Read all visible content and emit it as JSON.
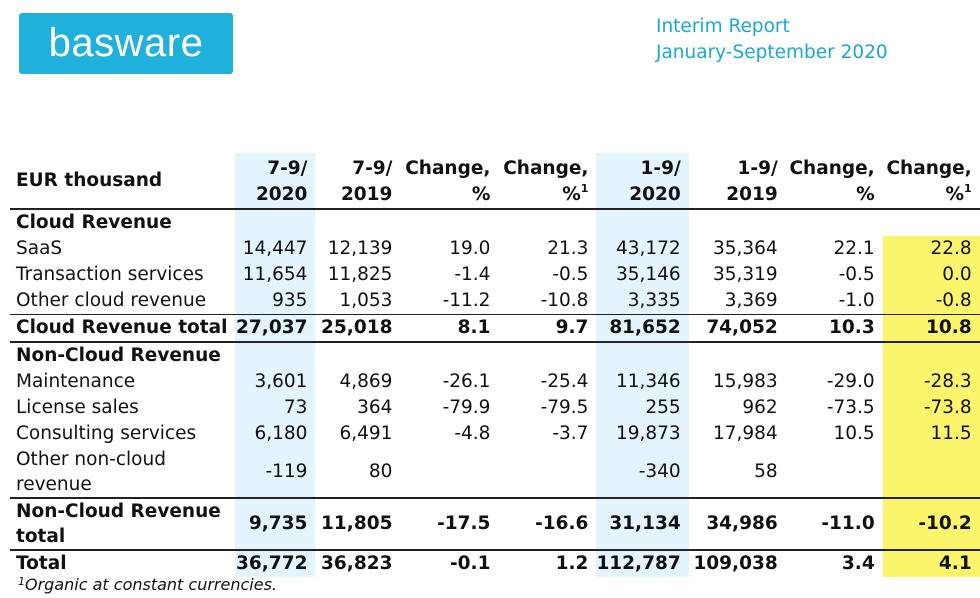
{
  "logo": {
    "text": "basware"
  },
  "report": {
    "line1": "Interim Report",
    "line2": "January-September 2020"
  },
  "header": {
    "label": "EUR thousand",
    "cols": [
      {
        "l1": "7-9/",
        "l2": "2020",
        "sup": ""
      },
      {
        "l1": "7-9/",
        "l2": "2019",
        "sup": ""
      },
      {
        "l1": "Change,",
        "l2": "%",
        "sup": ""
      },
      {
        "l1": "Change,",
        "l2": "%",
        "sup": "1"
      },
      {
        "l1": "1-9/",
        "l2": "2020",
        "sup": ""
      },
      {
        "l1": "1-9/",
        "l2": "2019",
        "sup": ""
      },
      {
        "l1": "Change,",
        "l2": "%",
        "sup": ""
      },
      {
        "l1": "Change,",
        "l2": "%",
        "sup": "1"
      }
    ]
  },
  "sections": {
    "cloud": "Cloud Revenue",
    "noncloud": "Non-Cloud Revenue"
  },
  "rows": [
    {
      "label": "SaaS",
      "v": [
        "14,447",
        "12,139",
        "19.0",
        "21.3",
        "43,172",
        "35,364",
        "22.1",
        "22.8"
      ]
    },
    {
      "label": "Transaction services",
      "v": [
        "11,654",
        "11,825",
        "-1.4",
        "-0.5",
        "35,146",
        "35,319",
        "-0.5",
        "0.0"
      ]
    },
    {
      "label": "Other cloud revenue",
      "v": [
        "935",
        "1,053",
        "-11.2",
        "-10.8",
        "3,335",
        "3,369",
        "-1.0",
        "-0.8"
      ]
    },
    {
      "label": "Cloud Revenue total",
      "v": [
        "27,037",
        "25,018",
        "8.1",
        "9.7",
        "81,652",
        "74,052",
        "10.3",
        "10.8"
      ]
    },
    {
      "label": "Maintenance",
      "v": [
        "3,601",
        "4,869",
        "-26.1",
        "-25.4",
        "11,346",
        "15,983",
        "-29.0",
        "-28.3"
      ]
    },
    {
      "label": "License sales",
      "v": [
        "73",
        "364",
        "-79.9",
        "-79.5",
        "255",
        "962",
        "-73.5",
        "-73.8"
      ]
    },
    {
      "label": "Consulting services",
      "v": [
        "6,180",
        "6,491",
        "-4.8",
        "-3.7",
        "19,873",
        "17,984",
        "10.5",
        "11.5"
      ]
    },
    {
      "label": "Other non-cloud revenue",
      "v": [
        "-119",
        "80",
        "",
        "",
        "-340",
        "58",
        "",
        ""
      ]
    },
    {
      "label": "Non-Cloud Revenue total",
      "v": [
        "9,735",
        "11,805",
        "-17.5",
        "-16.6",
        "31,134",
        "34,986",
        "-11.0",
        "-10.2"
      ]
    },
    {
      "label": "Total",
      "v": [
        "36,772",
        "36,823",
        "-0.1",
        "1.2",
        "112,787",
        "109,038",
        "3.4",
        "4.1"
      ]
    }
  ],
  "footnote": {
    "sup": "1",
    "text": "Organic at constant currencies."
  }
}
